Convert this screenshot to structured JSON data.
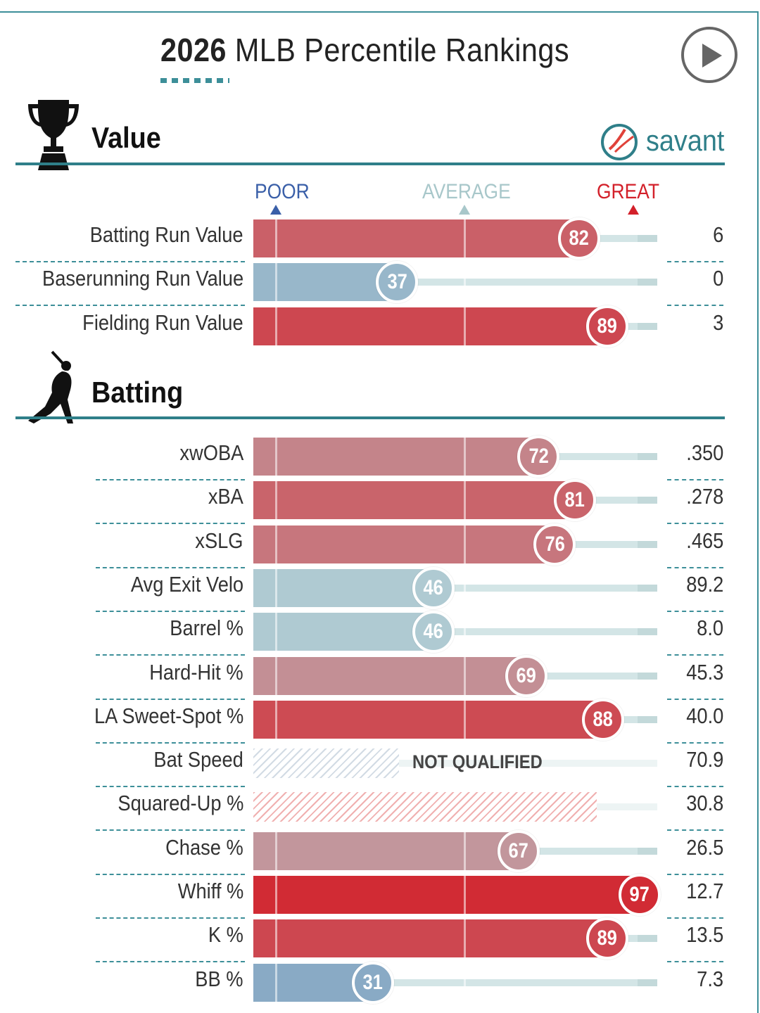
{
  "title": {
    "year": "2026",
    "rest": "MLB Percentile Rankings"
  },
  "brand": {
    "text": "savant"
  },
  "scale": {
    "poor": "POOR",
    "average": "AVERAGE",
    "great": "GREAT"
  },
  "colors": {
    "accent": "#2f7f89",
    "poor": "#3a5fa8",
    "average": "#a8c7ca",
    "great": "#d3202a"
  },
  "icons": [
    "trophy-icon",
    "batter-icon",
    "play-icon",
    "savant-logo-icon"
  ],
  "sections": [
    {
      "title": "Value",
      "rows": [
        {
          "label": "Batting Run Value",
          "percentile": 82,
          "value": "6"
        },
        {
          "label": "Baserunning Run Value",
          "percentile": 37,
          "value": "0"
        },
        {
          "label": "Fielding Run Value",
          "percentile": 89,
          "value": "3"
        }
      ]
    },
    {
      "title": "Batting",
      "rows": [
        {
          "label": "xwOBA",
          "percentile": 72,
          "value": ".350"
        },
        {
          "label": "xBA",
          "percentile": 81,
          "value": ".278"
        },
        {
          "label": "xSLG",
          "percentile": 76,
          "value": ".465"
        },
        {
          "label": "Avg Exit Velo",
          "percentile": 46,
          "value": "89.2"
        },
        {
          "label": "Barrel %",
          "percentile": 46,
          "value": "8.0"
        },
        {
          "label": "Hard-Hit %",
          "percentile": 69,
          "value": "45.3"
        },
        {
          "label": "LA Sweet-Spot %",
          "percentile": 88,
          "value": "40.0"
        },
        {
          "label": "Bat Speed",
          "percentile": null,
          "value": "70.9",
          "status": "NOT QUALIFIED",
          "estimate": 36
        },
        {
          "label": "Squared-Up %",
          "percentile": null,
          "value": "30.8",
          "estimate": 85
        },
        {
          "label": "Chase %",
          "percentile": 67,
          "value": "26.5"
        },
        {
          "label": "Whiff %",
          "percentile": 97,
          "value": "12.7"
        },
        {
          "label": "K %",
          "percentile": 89,
          "value": "13.5"
        },
        {
          "label": "BB %",
          "percentile": 31,
          "value": "7.3"
        }
      ]
    }
  ],
  "chart_data": {
    "type": "bar",
    "title": "2026 MLB Percentile Rankings",
    "xlim": [
      0,
      100
    ],
    "scale_labels": [
      "POOR",
      "AVERAGE",
      "GREAT"
    ],
    "categories": [
      "Batting Run Value",
      "Baserunning Run Value",
      "Fielding Run Value",
      "xwOBA",
      "xBA",
      "xSLG",
      "Avg Exit Velo",
      "Barrel %",
      "Hard-Hit %",
      "LA Sweet-Spot %",
      "Bat Speed",
      "Squared-Up %",
      "Chase %",
      "Whiff %",
      "K %",
      "BB %"
    ],
    "values": [
      82,
      37,
      89,
      72,
      81,
      76,
      46,
      46,
      69,
      88,
      null,
      null,
      67,
      97,
      89,
      31
    ],
    "stat_values": [
      "6",
      "0",
      "3",
      ".350",
      ".278",
      ".465",
      "89.2",
      "8.0",
      "45.3",
      "40.0",
      "70.9",
      "30.8",
      "26.5",
      "12.7",
      "13.5",
      "7.3"
    ]
  }
}
